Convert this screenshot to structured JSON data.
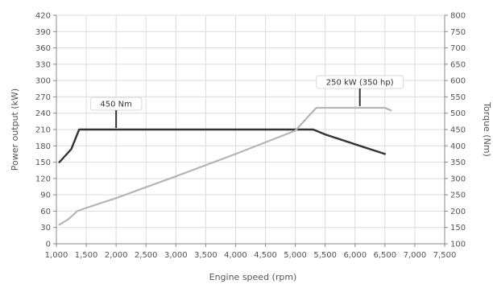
{
  "chart_data": {
    "type": "line",
    "xlabel": "Engine speed (rpm)",
    "ylabel_left": "Power output (kW)",
    "ylabel_right": "Torque (Nm)",
    "xlim": [
      1000,
      7500
    ],
    "ylim_left": [
      0,
      420
    ],
    "ylim_right": [
      100,
      800
    ],
    "x_ticks": [
      "1,000",
      "1,500",
      "2,000",
      "2,500",
      "3,000",
      "3,500",
      "4,000",
      "4,500",
      "5,000",
      "5,500",
      "6,000",
      "6,500",
      "7,000",
      "7,500"
    ],
    "x_tick_values": [
      1000,
      1500,
      2000,
      2500,
      3000,
      3500,
      4000,
      4500,
      5000,
      5500,
      6000,
      6500,
      7000,
      7500
    ],
    "y_left_ticks": [
      "0",
      "30",
      "60",
      "90",
      "120",
      "150",
      "180",
      "210",
      "240",
      "270",
      "300",
      "330",
      "360",
      "390",
      "420"
    ],
    "y_right_ticks": [
      "100",
      "150",
      "200",
      "250",
      "300",
      "350",
      "400",
      "450",
      "500",
      "550",
      "600",
      "650",
      "700",
      "750",
      "800"
    ],
    "grid": true,
    "series": [
      {
        "axis": "right",
        "color": "#333333",
        "x": [
          1050,
          1150,
          1250,
          1380,
          1500,
          2000,
          3000,
          4000,
          5000,
          5300,
          5500,
          6000,
          6500
        ],
        "values": [
          350,
          370,
          390,
          450,
          450,
          450,
          450,
          450,
          450,
          450,
          435,
          405,
          375
        ]
      },
      {
        "axis": "left",
        "color": "#b5b5b5",
        "x": [
          1050,
          1200,
          1350,
          1500,
          2000,
          3000,
          4000,
          5000,
          5350,
          5500,
          6000,
          6500,
          6600
        ],
        "values": [
          35,
          45,
          60,
          66,
          84,
          124,
          165,
          208,
          250,
          250,
          250,
          250,
          245
        ]
      }
    ],
    "annotations": [
      {
        "text": "450 Nm",
        "at_x": 2000,
        "axis": "right",
        "value": 450
      },
      {
        "text": "250 kW (350 hp)",
        "at_x": 6080,
        "axis": "left",
        "value": 250
      }
    ]
  }
}
